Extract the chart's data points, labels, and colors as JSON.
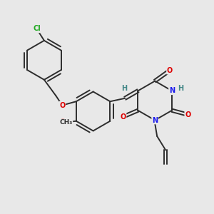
{
  "background_color": "#e8e8e8",
  "bond_color": "#2d2d2d",
  "atom_colors": {
    "O": "#dd0000",
    "N": "#1a1aee",
    "Cl": "#22aa22",
    "H": "#448888",
    "C": "#2d2d2d"
  },
  "figsize": [
    3.0,
    3.0
  ],
  "dpi": 100
}
